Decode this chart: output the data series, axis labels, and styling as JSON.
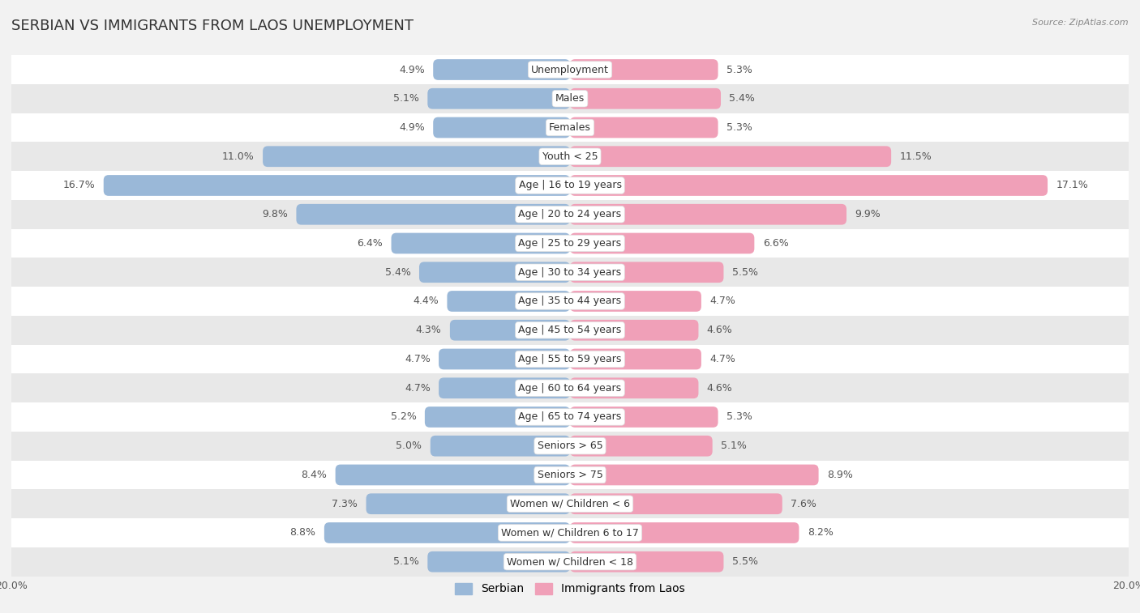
{
  "title": "SERBIAN VS IMMIGRANTS FROM LAOS UNEMPLOYMENT",
  "source": "Source: ZipAtlas.com",
  "categories": [
    "Unemployment",
    "Males",
    "Females",
    "Youth < 25",
    "Age | 16 to 19 years",
    "Age | 20 to 24 years",
    "Age | 25 to 29 years",
    "Age | 30 to 34 years",
    "Age | 35 to 44 years",
    "Age | 45 to 54 years",
    "Age | 55 to 59 years",
    "Age | 60 to 64 years",
    "Age | 65 to 74 years",
    "Seniors > 65",
    "Seniors > 75",
    "Women w/ Children < 6",
    "Women w/ Children 6 to 17",
    "Women w/ Children < 18"
  ],
  "serbian_values": [
    4.9,
    5.1,
    4.9,
    11.0,
    16.7,
    9.8,
    6.4,
    5.4,
    4.4,
    4.3,
    4.7,
    4.7,
    5.2,
    5.0,
    8.4,
    7.3,
    8.8,
    5.1
  ],
  "laos_values": [
    5.3,
    5.4,
    5.3,
    11.5,
    17.1,
    9.9,
    6.6,
    5.5,
    4.7,
    4.6,
    4.7,
    4.6,
    5.3,
    5.1,
    8.9,
    7.6,
    8.2,
    5.5
  ],
  "serbian_color": "#9ab8d8",
  "laos_color": "#f0a0b8",
  "max_val": 20.0,
  "background_color": "#f2f2f2",
  "row_even_color": "#ffffff",
  "row_odd_color": "#e8e8e8",
  "title_fontsize": 13,
  "label_fontsize": 9,
  "value_fontsize": 9,
  "legend_fontsize": 10,
  "bar_height": 0.72
}
